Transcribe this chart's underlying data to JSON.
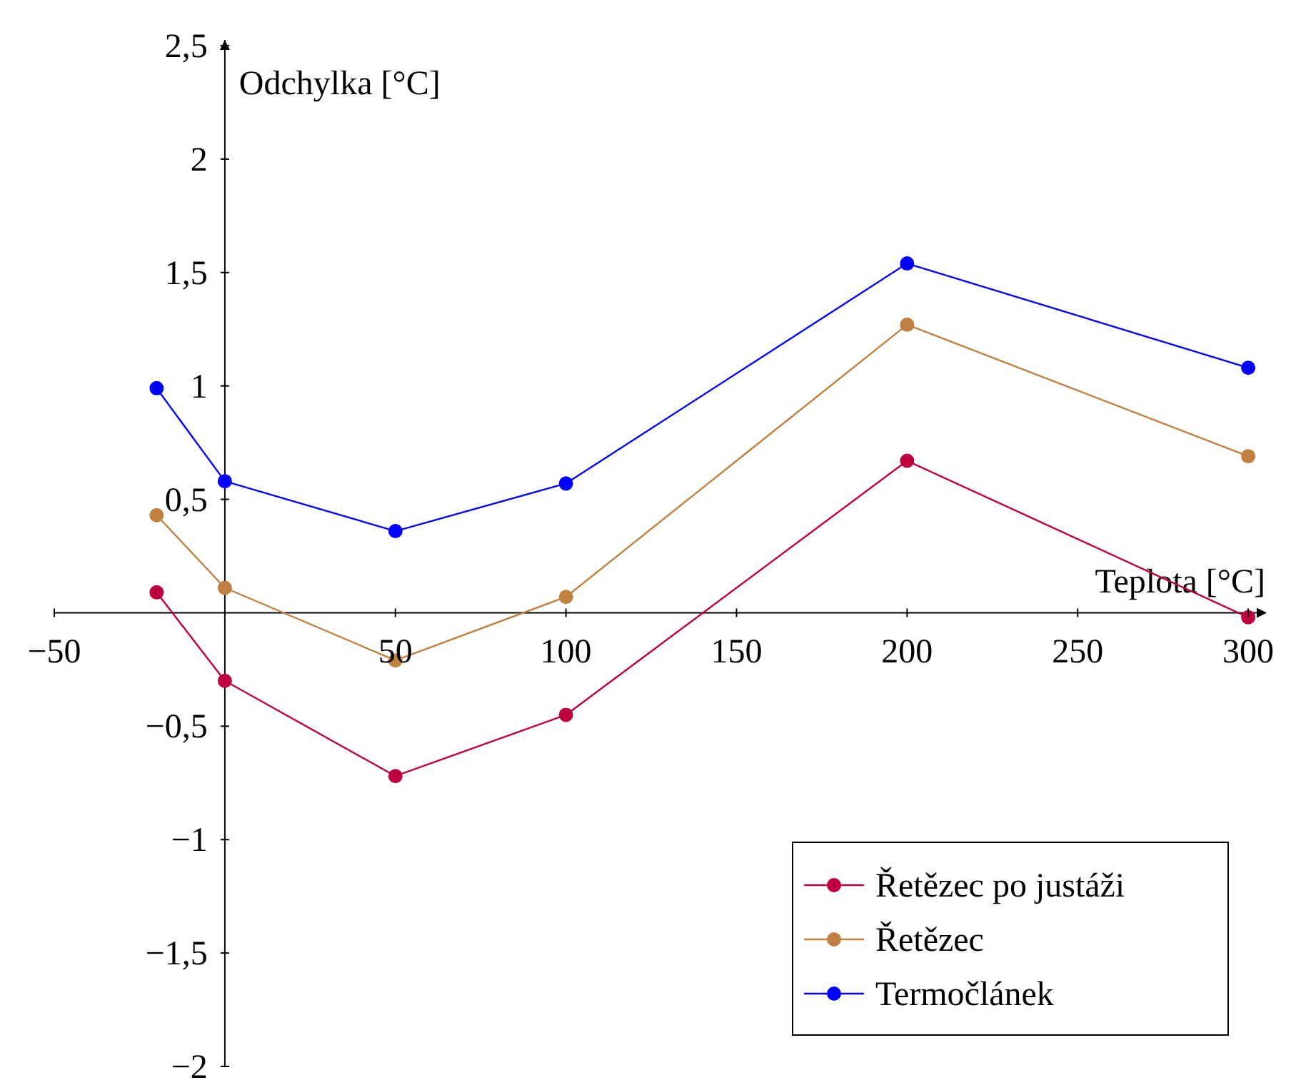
{
  "chart_data": {
    "type": "line",
    "xlabel": "Teplota [°C]",
    "ylabel": "Odchylka [°C]",
    "x": [
      -20,
      0,
      50,
      100,
      200,
      300
    ],
    "series": [
      {
        "name": "Řetězec po justáži",
        "color": "#bf0040",
        "values": [
          0.09,
          -0.3,
          -0.72,
          -0.45,
          0.67,
          -0.02
        ]
      },
      {
        "name": "Řetězec",
        "color": "#bf8040",
        "values": [
          0.43,
          0.11,
          -0.21,
          0.07,
          1.27,
          0.69
        ]
      },
      {
        "name": "Termočlánek",
        "color": "#0000ff",
        "values": [
          0.99,
          0.58,
          0.36,
          0.57,
          1.54,
          1.08
        ]
      }
    ],
    "xlim": [
      -50,
      305
    ],
    "ylim": [
      -2,
      2.5
    ],
    "xticks": [
      {
        "value": -50,
        "label": "−50"
      },
      50,
      100,
      150,
      200,
      250,
      300
    ],
    "yticks": [
      {
        "value": -2,
        "label": "−2"
      },
      {
        "value": -1.5,
        "label": "−1,5"
      },
      {
        "value": -1,
        "label": "−1"
      },
      {
        "value": -0.5,
        "label": "−0,5"
      },
      {
        "value": 0.5,
        "label": "0,5"
      },
      1,
      {
        "value": 1.5,
        "label": "1,5"
      },
      2,
      {
        "value": 2.5,
        "label": "2,5"
      }
    ],
    "marker": "circle",
    "line_style": "solid",
    "grid": false,
    "legend": "bottom right"
  }
}
